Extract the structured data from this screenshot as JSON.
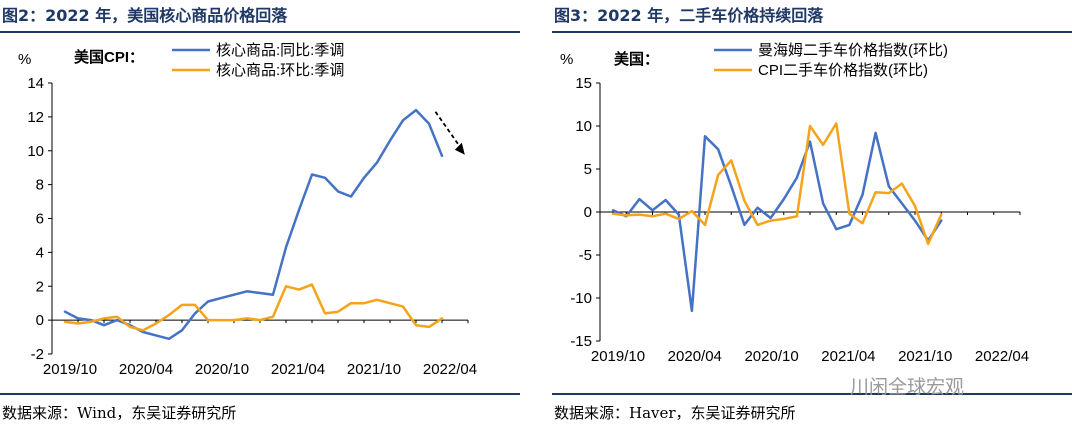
{
  "left": {
    "title": "图2：2022 年，美国核心商品价格回落",
    "source": "数据来源：Wind，东吴证券研究所",
    "legend_prefix": "美国CPI：",
    "y_unit": "%"
  },
  "right": {
    "title": "图3：2022 年，二手车价格持续回落",
    "source": "数据来源：Haver，东吴证券研究所",
    "legend_prefix": "美国：",
    "y_unit": "%"
  },
  "watermark": "川闲全球宏观",
  "colors": {
    "blue": "#4472C4",
    "orange": "#F5A31A",
    "title": "#1f3864"
  },
  "chart_data": [
    {
      "type": "line",
      "title": "图2：2022 年，美国核心商品价格回落",
      "ylabel": "%",
      "ylim": [
        -2,
        14
      ],
      "yticks": [
        -2,
        0,
        2,
        4,
        6,
        8,
        10,
        12,
        14
      ],
      "xlim": [
        0,
        32
      ],
      "x_tick_labels": [
        "2019/10",
        "2020/04",
        "2020/10",
        "2021/04",
        "2021/10",
        "2022/04"
      ],
      "grid": false,
      "legend": "top",
      "annotation": "downward arrow near 2022/04",
      "series": [
        {
          "name": "核心商品:同比:季调",
          "color": "#4472C4",
          "values": [
            0.5,
            0.1,
            0.0,
            -0.3,
            0.0,
            -0.3,
            -0.7,
            -0.9,
            -1.1,
            -0.6,
            0.4,
            1.1,
            1.3,
            1.5,
            1.7,
            1.6,
            1.5,
            4.3,
            6.5,
            8.6,
            8.4,
            7.6,
            7.3,
            8.4,
            9.3,
            10.6,
            11.8,
            12.4,
            11.6,
            9.7
          ]
        },
        {
          "name": "核心商品:环比:季调",
          "color": "#F5A31A",
          "values": [
            -0.1,
            -0.2,
            -0.1,
            0.1,
            0.2,
            -0.4,
            -0.6,
            -0.2,
            0.3,
            0.9,
            0.9,
            0.0,
            0.0,
            0.0,
            0.1,
            0.0,
            0.2,
            2.0,
            1.8,
            2.1,
            0.4,
            0.5,
            1.0,
            1.0,
            1.2,
            1.0,
            0.8,
            -0.3,
            -0.4,
            0.1
          ]
        }
      ]
    },
    {
      "type": "line",
      "title": "图3：2022 年，二手车价格持续回落",
      "ylabel": "%",
      "ylim": [
        -15,
        15
      ],
      "yticks": [
        -15,
        -10,
        -5,
        0,
        5,
        10,
        15
      ],
      "xlim": [
        0,
        32
      ],
      "x_tick_labels": [
        "2019/10",
        "2020/04",
        "2020/10",
        "2021/04",
        "2021/10",
        "2022/04"
      ],
      "grid": false,
      "legend": "top",
      "series": [
        {
          "name": "曼海姆二手车价格指数(环比)",
          "color": "#4472C4",
          "values": [
            0.2,
            -0.5,
            1.5,
            0.2,
            1.4,
            -0.3,
            -11.5,
            8.8,
            7.3,
            3.0,
            -1.5,
            0.5,
            -0.7,
            1.5,
            4.0,
            8.2,
            1.0,
            -2.0,
            -1.5,
            2.0,
            9.2,
            3.0,
            1.0,
            -1.0,
            -3.3,
            -1.0
          ]
        },
        {
          "name": "CPI二手车价格指数(环比)",
          "color": "#F5A31A",
          "values": [
            -0.2,
            -0.4,
            -0.3,
            -0.5,
            -0.2,
            -0.8,
            0.1,
            -1.5,
            4.3,
            6.0,
            1.3,
            -1.5,
            -1.0,
            -0.8,
            -0.5,
            10.0,
            7.8,
            10.3,
            -0.2,
            -1.3,
            2.3,
            2.2,
            3.3,
            0.7,
            -3.7,
            -0.3
          ]
        }
      ]
    }
  ]
}
